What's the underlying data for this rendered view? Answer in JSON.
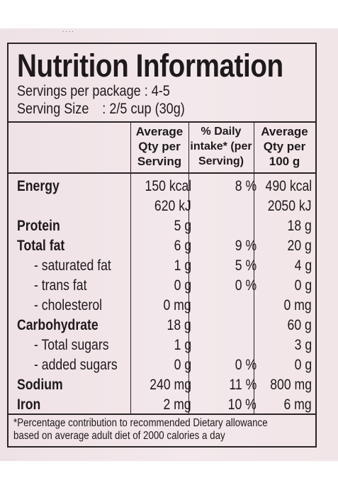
{
  "label": {
    "title": "Nutrition Information",
    "servings_label": "Servings per package : 4-5",
    "serving_size_label": "Serving Size",
    "serving_size_value": ": 2/5 cup (30g)",
    "columns": [
      [
        "Average",
        "Qty per",
        "Serving"
      ],
      [
        "% Daily",
        "intake* (per",
        "Serving)"
      ],
      [
        "Average",
        "Qty per",
        "100 g"
      ]
    ],
    "rows": [
      {
        "label": "Energy",
        "serving": "150 kcal",
        "daily": "8 %",
        "per100": "490 kcal"
      },
      {
        "label": "",
        "serving": "620 kJ",
        "daily": "",
        "per100": "2050 kJ"
      },
      {
        "label": "Protein",
        "serving": "5 g",
        "daily": "",
        "per100": "18 g"
      },
      {
        "label": "Total fat",
        "serving": "6 g",
        "daily": "9 %",
        "per100": "20 g"
      },
      {
        "label": "- saturated fat",
        "serving": "1 g",
        "daily": "5 %",
        "per100": "4 g"
      },
      {
        "label": "- trans fat",
        "serving": "0 g",
        "daily": "0 %",
        "per100": "0 g"
      },
      {
        "label": "- cholesterol",
        "serving": "0 mg",
        "daily": "",
        "per100": "0 mg"
      },
      {
        "label": "Carbohydrate",
        "serving": "18 g",
        "daily": "",
        "per100": "60 g"
      },
      {
        "label": "- Total sugars",
        "serving": "1 g",
        "daily": "",
        "per100": "3 g"
      },
      {
        "label": "- added sugars",
        "serving": "0 g",
        "daily": "0 %",
        "per100": "0 g"
      },
      {
        "label": "Sodium",
        "serving": "240 mg",
        "daily": "11 %",
        "per100": "800 mg"
      },
      {
        "label": "Iron",
        "serving": "2 mg",
        "daily": "10 %",
        "per100": "6 mg"
      }
    ],
    "footnote_line1": "*Percentage contribution to recommended Dietary allowance",
    "footnote_line2": "based on average adult diet of 2000 calories a day"
  }
}
